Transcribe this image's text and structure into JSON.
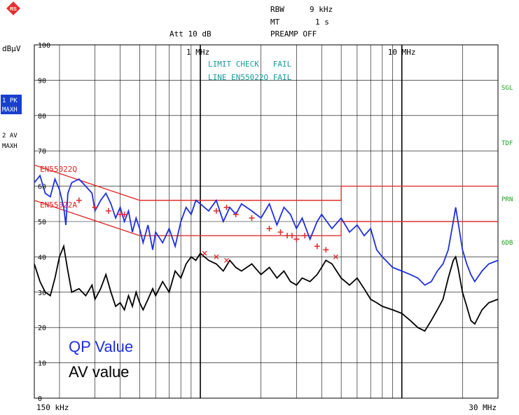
{
  "header": {
    "rbw_label": "RBW",
    "rbw_value": "9 kHz",
    "mt_label": "MT",
    "mt_value": "1 s",
    "att_text": "Att 10 dB",
    "preamp_text": "PREAMP OFF"
  },
  "left_labels": {
    "unit": "dBµV",
    "trace1_line1": "1 PK",
    "trace1_line2": "MAXH",
    "trace2_line1": "2 AV",
    "trace2_line2": "MAXH"
  },
  "right_labels": [
    "SGL",
    "TDF",
    "PRN",
    "6DB"
  ],
  "limit_check": {
    "line1": "LIMIT CHECK   FAIL",
    "line2": "LINE EN55022Q FAIL"
  },
  "limit_labels": {
    "qp": "EN55022Q",
    "av": "EN55022A"
  },
  "legend": {
    "qp": "QP Value",
    "av": "AV value"
  },
  "colors": {
    "pk": "#1e2fe0",
    "av": "#000000",
    "limit": "#e03030",
    "cyan": "#1a9a9a",
    "green": "#1aa01a",
    "badge": "#1a3fd0"
  },
  "chart_data": {
    "type": "line",
    "x_scale": "log",
    "xlim_hz": [
      150000,
      30000000
    ],
    "ylim": [
      0,
      100
    ],
    "ylabel": "dBµV",
    "x_start_label": "150 kHz",
    "x_end_label": "30 MHz",
    "x_tick_labels": [
      {
        "hz": 1000000,
        "label": "1 MHz"
      },
      {
        "hz": 10000000,
        "label": "10 MHz"
      }
    ],
    "y_ticks": [
      0,
      10,
      20,
      30,
      40,
      50,
      60,
      70,
      80,
      90,
      100
    ],
    "y_tick_labels": [
      "0",
      "10",
      "20",
      "30",
      "40",
      "50",
      "60",
      "70",
      "80",
      "90",
      "100"
    ],
    "grid": true,
    "limit_lines": [
      {
        "name": "EN55022Q",
        "points": [
          [
            150000,
            66
          ],
          [
            500000,
            56
          ],
          [
            5000000,
            56
          ],
          [
            5000000,
            60
          ],
          [
            30000000,
            60
          ]
        ]
      },
      {
        "name": "EN55022A",
        "points": [
          [
            150000,
            56
          ],
          [
            500000,
            46
          ],
          [
            5000000,
            46
          ],
          [
            5000000,
            50
          ],
          [
            30000000,
            50
          ]
        ]
      }
    ],
    "series": [
      {
        "name": "1 PK MAXH",
        "points": [
          [
            150000,
            61
          ],
          [
            160000,
            63
          ],
          [
            170000,
            58
          ],
          [
            180000,
            57
          ],
          [
            190000,
            62
          ],
          [
            200000,
            59
          ],
          [
            210000,
            54
          ],
          [
            215000,
            49
          ],
          [
            220000,
            58
          ],
          [
            230000,
            61
          ],
          [
            250000,
            62
          ],
          [
            270000,
            60
          ],
          [
            290000,
            58
          ],
          [
            300000,
            53
          ],
          [
            320000,
            56
          ],
          [
            340000,
            58
          ],
          [
            360000,
            55
          ],
          [
            380000,
            51
          ],
          [
            400000,
            54
          ],
          [
            420000,
            50
          ],
          [
            440000,
            53
          ],
          [
            460000,
            47
          ],
          [
            480000,
            51
          ],
          [
            500000,
            48
          ],
          [
            520000,
            44
          ],
          [
            550000,
            49
          ],
          [
            580000,
            42
          ],
          [
            600000,
            47
          ],
          [
            650000,
            44
          ],
          [
            700000,
            48
          ],
          [
            750000,
            43
          ],
          [
            800000,
            50
          ],
          [
            850000,
            54
          ],
          [
            900000,
            52
          ],
          [
            950000,
            56
          ],
          [
            1000000,
            55
          ],
          [
            1100000,
            53
          ],
          [
            1200000,
            56
          ],
          [
            1300000,
            50
          ],
          [
            1400000,
            54
          ],
          [
            1500000,
            52
          ],
          [
            1600000,
            55
          ],
          [
            1800000,
            53
          ],
          [
            2000000,
            51
          ],
          [
            2200000,
            55
          ],
          [
            2400000,
            49
          ],
          [
            2600000,
            54
          ],
          [
            2800000,
            52
          ],
          [
            3000000,
            48
          ],
          [
            3200000,
            51
          ],
          [
            3500000,
            45
          ],
          [
            3800000,
            50
          ],
          [
            4000000,
            52
          ],
          [
            4500000,
            48
          ],
          [
            5000000,
            51
          ],
          [
            5500000,
            47
          ],
          [
            6000000,
            49
          ],
          [
            6500000,
            46
          ],
          [
            7000000,
            48
          ],
          [
            7500000,
            42
          ],
          [
            8000000,
            40
          ],
          [
            9000000,
            37
          ],
          [
            10000000,
            36
          ],
          [
            11000000,
            35
          ],
          [
            12000000,
            34
          ],
          [
            13000000,
            32
          ],
          [
            14000000,
            33
          ],
          [
            15000000,
            36
          ],
          [
            16000000,
            38
          ],
          [
            17000000,
            42
          ],
          [
            18000000,
            50
          ],
          [
            18500000,
            54
          ],
          [
            19000000,
            50
          ],
          [
            20000000,
            42
          ],
          [
            21000000,
            38
          ],
          [
            22000000,
            35
          ],
          [
            23000000,
            33
          ],
          [
            25000000,
            36
          ],
          [
            27000000,
            38
          ],
          [
            30000000,
            39
          ]
        ]
      },
      {
        "name": "2 AV MAXH",
        "points": [
          [
            150000,
            38
          ],
          [
            160000,
            33
          ],
          [
            170000,
            30
          ],
          [
            180000,
            29
          ],
          [
            190000,
            34
          ],
          [
            200000,
            40
          ],
          [
            210000,
            43
          ],
          [
            220000,
            36
          ],
          [
            230000,
            30
          ],
          [
            250000,
            31
          ],
          [
            270000,
            29
          ],
          [
            290000,
            32
          ],
          [
            300000,
            28
          ],
          [
            320000,
            31
          ],
          [
            340000,
            35
          ],
          [
            360000,
            30
          ],
          [
            380000,
            26
          ],
          [
            400000,
            27
          ],
          [
            420000,
            25
          ],
          [
            440000,
            29
          ],
          [
            460000,
            26
          ],
          [
            480000,
            30
          ],
          [
            500000,
            27
          ],
          [
            520000,
            25
          ],
          [
            550000,
            28
          ],
          [
            580000,
            31
          ],
          [
            600000,
            29
          ],
          [
            650000,
            33
          ],
          [
            700000,
            30
          ],
          [
            750000,
            36
          ],
          [
            800000,
            34
          ],
          [
            850000,
            38
          ],
          [
            900000,
            40
          ],
          [
            950000,
            39
          ],
          [
            1000000,
            41
          ],
          [
            1100000,
            39
          ],
          [
            1200000,
            38
          ],
          [
            1300000,
            36
          ],
          [
            1400000,
            39
          ],
          [
            1500000,
            37
          ],
          [
            1600000,
            36
          ],
          [
            1800000,
            38
          ],
          [
            2000000,
            35
          ],
          [
            2200000,
            37
          ],
          [
            2400000,
            34
          ],
          [
            2600000,
            36
          ],
          [
            2800000,
            33
          ],
          [
            3000000,
            32
          ],
          [
            3200000,
            34
          ],
          [
            3500000,
            33
          ],
          [
            3800000,
            35
          ],
          [
            4000000,
            37
          ],
          [
            4200000,
            39
          ],
          [
            4500000,
            38
          ],
          [
            5000000,
            34
          ],
          [
            5500000,
            32
          ],
          [
            6000000,
            34
          ],
          [
            6500000,
            31
          ],
          [
            7000000,
            28
          ],
          [
            7500000,
            27
          ],
          [
            8000000,
            26
          ],
          [
            9000000,
            25
          ],
          [
            10000000,
            24
          ],
          [
            11000000,
            22
          ],
          [
            12000000,
            20
          ],
          [
            13000000,
            19
          ],
          [
            14000000,
            22
          ],
          [
            15000000,
            25
          ],
          [
            16000000,
            28
          ],
          [
            17000000,
            34
          ],
          [
            18000000,
            39
          ],
          [
            18500000,
            40
          ],
          [
            19000000,
            37
          ],
          [
            20000000,
            30
          ],
          [
            21000000,
            26
          ],
          [
            22000000,
            22
          ],
          [
            23000000,
            21
          ],
          [
            25000000,
            25
          ],
          [
            27000000,
            27
          ],
          [
            30000000,
            28
          ]
        ]
      }
    ],
    "qp_markers": [
      [
        250000,
        56
      ],
      [
        300000,
        54
      ],
      [
        350000,
        53
      ],
      [
        400000,
        52
      ],
      [
        420000,
        52
      ],
      [
        1200000,
        53
      ],
      [
        1350000,
        54
      ],
      [
        1500000,
        52
      ],
      [
        1800000,
        51
      ],
      [
        2200000,
        48
      ],
      [
        2500000,
        47
      ],
      [
        2700000,
        46
      ],
      [
        2850000,
        46
      ],
      [
        3000000,
        45
      ],
      [
        3300000,
        46
      ],
      [
        3800000,
        43
      ],
      [
        4200000,
        42
      ]
    ],
    "av_markers": [
      [
        1050000,
        41
      ],
      [
        1200000,
        40
      ],
      [
        1350000,
        39
      ],
      [
        4700000,
        40
      ]
    ]
  }
}
